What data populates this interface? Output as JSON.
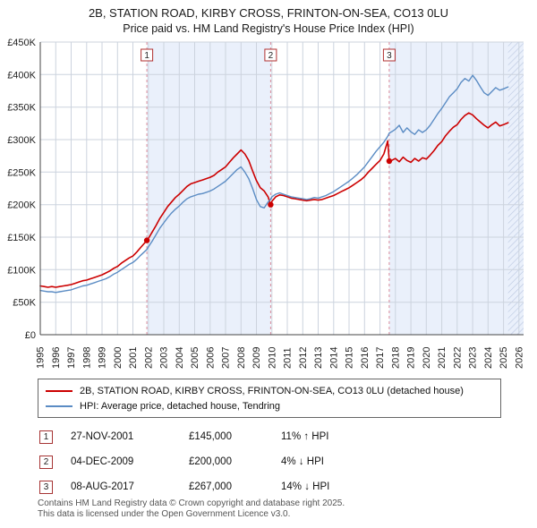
{
  "title": {
    "line1": "2B, STATION ROAD, KIRBY CROSS, FRINTON-ON-SEA, CO13 0LU",
    "line2": "Price paid vs. HM Land Registry's House Price Index (HPI)"
  },
  "chart_data": {
    "type": "line",
    "title": "2B, STATION ROAD, KIRBY CROSS, FRINTON-ON-SEA, CO13 0LU — Price paid vs. HM Land Registry's House Price Index (HPI)",
    "xlim": [
      1995,
      2026.3
    ],
    "ylim": [
      0,
      450000
    ],
    "y_unit": "GBP",
    "values_unit": "GBP_thousands",
    "y_ticks": [
      {
        "k": 0,
        "label": "£0"
      },
      {
        "k": 50,
        "label": "£50K"
      },
      {
        "k": 100,
        "label": "£100K"
      },
      {
        "k": 150,
        "label": "£150K"
      },
      {
        "k": 200,
        "label": "£200K"
      },
      {
        "k": 250,
        "label": "£250K"
      },
      {
        "k": 300,
        "label": "£300K"
      },
      {
        "k": 350,
        "label": "£350K"
      },
      {
        "k": 400,
        "label": "£400K"
      },
      {
        "k": 450,
        "label": "£450K"
      }
    ],
    "x_ticks": [
      1995,
      1996,
      1997,
      1998,
      1999,
      2000,
      2001,
      2002,
      2003,
      2004,
      2005,
      2006,
      2007,
      2008,
      2009,
      2010,
      2011,
      2012,
      2013,
      2014,
      2015,
      2016,
      2017,
      2018,
      2019,
      2020,
      2021,
      2022,
      2023,
      2024,
      2025,
      2026
    ],
    "grid": true,
    "legend_position": "below",
    "colors": {
      "band": "#eaf0fb",
      "grid": "#ccd3de",
      "event_line": "#d98a9a",
      "event_box_border": "#b03030",
      "axis": "#444444",
      "hatch": "#b9c6e0",
      "marker": "#cc0000"
    },
    "bands": [
      [
        2001.906,
        2009.92
      ],
      [
        2017.6,
        2026.3
      ]
    ],
    "hatch": [
      2025.3,
      2026.3
    ],
    "events": [
      {
        "num": "1",
        "x": 2001.906,
        "price_k": 145
      },
      {
        "num": "2",
        "x": 2009.92,
        "price_k": 200
      },
      {
        "num": "3",
        "x": 2017.6,
        "price_k": 267
      }
    ],
    "series": [
      {
        "name": "2B, STATION ROAD, KIRBY CROSS, FRINTON-ON-SEA, CO13 0LU (detached house)",
        "color": "#cc0000",
        "width": 1.6,
        "points": [
          [
            1995.0,
            75
          ],
          [
            1995.25,
            74
          ],
          [
            1995.5,
            73
          ],
          [
            1995.75,
            74
          ],
          [
            1996.0,
            73
          ],
          [
            1996.25,
            74
          ],
          [
            1996.5,
            75
          ],
          [
            1996.75,
            76
          ],
          [
            1997.0,
            77
          ],
          [
            1997.25,
            79
          ],
          [
            1997.5,
            81
          ],
          [
            1997.75,
            83
          ],
          [
            1998.0,
            84
          ],
          [
            1998.25,
            86
          ],
          [
            1998.5,
            88
          ],
          [
            1998.75,
            90
          ],
          [
            1999.0,
            92
          ],
          [
            1999.25,
            95
          ],
          [
            1999.5,
            98
          ],
          [
            1999.75,
            102
          ],
          [
            2000.0,
            105
          ],
          [
            2000.25,
            110
          ],
          [
            2000.5,
            114
          ],
          [
            2000.75,
            118
          ],
          [
            2001.0,
            121
          ],
          [
            2001.25,
            127
          ],
          [
            2001.5,
            134
          ],
          [
            2001.906,
            145
          ],
          [
            2002.0,
            148
          ],
          [
            2002.25,
            158
          ],
          [
            2002.5,
            168
          ],
          [
            2002.75,
            179
          ],
          [
            2003.0,
            188
          ],
          [
            2003.25,
            197
          ],
          [
            2003.5,
            204
          ],
          [
            2003.75,
            211
          ],
          [
            2004.0,
            216
          ],
          [
            2004.25,
            222
          ],
          [
            2004.5,
            228
          ],
          [
            2004.75,
            232
          ],
          [
            2005.0,
            234
          ],
          [
            2005.25,
            236
          ],
          [
            2005.5,
            238
          ],
          [
            2005.75,
            240
          ],
          [
            2006.0,
            242
          ],
          [
            2006.25,
            245
          ],
          [
            2006.5,
            250
          ],
          [
            2006.75,
            254
          ],
          [
            2007.0,
            258
          ],
          [
            2007.25,
            265
          ],
          [
            2007.5,
            272
          ],
          [
            2007.75,
            278
          ],
          [
            2008.0,
            284
          ],
          [
            2008.25,
            278
          ],
          [
            2008.5,
            268
          ],
          [
            2008.75,
            252
          ],
          [
            2009.0,
            237
          ],
          [
            2009.25,
            226
          ],
          [
            2009.5,
            221
          ],
          [
            2009.75,
            212
          ],
          [
            2009.92,
            200
          ],
          [
            2010.0,
            205
          ],
          [
            2010.25,
            212
          ],
          [
            2010.5,
            215
          ],
          [
            2010.75,
            214
          ],
          [
            2011.0,
            212
          ],
          [
            2011.25,
            210
          ],
          [
            2011.5,
            209
          ],
          [
            2011.75,
            208
          ],
          [
            2012.0,
            207
          ],
          [
            2012.25,
            206
          ],
          [
            2012.5,
            207
          ],
          [
            2012.75,
            208
          ],
          [
            2013.0,
            207
          ],
          [
            2013.25,
            208
          ],
          [
            2013.5,
            210
          ],
          [
            2013.75,
            212
          ],
          [
            2014.0,
            214
          ],
          [
            2014.25,
            217
          ],
          [
            2014.5,
            220
          ],
          [
            2014.75,
            223
          ],
          [
            2015.0,
            226
          ],
          [
            2015.25,
            230
          ],
          [
            2015.5,
            234
          ],
          [
            2015.75,
            238
          ],
          [
            2016.0,
            243
          ],
          [
            2016.25,
            250
          ],
          [
            2016.5,
            256
          ],
          [
            2016.75,
            262
          ],
          [
            2017.0,
            268
          ],
          [
            2017.25,
            278
          ],
          [
            2017.5,
            298
          ],
          [
            2017.6,
            267
          ],
          [
            2017.75,
            268
          ],
          [
            2018.0,
            271
          ],
          [
            2018.25,
            266
          ],
          [
            2018.5,
            273
          ],
          [
            2018.75,
            268
          ],
          [
            2019.0,
            265
          ],
          [
            2019.25,
            271
          ],
          [
            2019.5,
            267
          ],
          [
            2019.75,
            272
          ],
          [
            2020.0,
            270
          ],
          [
            2020.25,
            276
          ],
          [
            2020.5,
            283
          ],
          [
            2020.75,
            291
          ],
          [
            2021.0,
            297
          ],
          [
            2021.25,
            306
          ],
          [
            2021.5,
            313
          ],
          [
            2021.75,
            319
          ],
          [
            2022.0,
            323
          ],
          [
            2022.25,
            331
          ],
          [
            2022.5,
            337
          ],
          [
            2022.75,
            341
          ],
          [
            2023.0,
            338
          ],
          [
            2023.25,
            332
          ],
          [
            2023.5,
            327
          ],
          [
            2023.75,
            322
          ],
          [
            2024.0,
            318
          ],
          [
            2024.25,
            323
          ],
          [
            2024.5,
            327
          ],
          [
            2024.75,
            321
          ],
          [
            2025.0,
            323
          ],
          [
            2025.3,
            326
          ]
        ]
      },
      {
        "name": "HPI: Average price, detached house, Tendring",
        "color": "#5b8cc4",
        "width": 1.4,
        "points": [
          [
            1995.0,
            68
          ],
          [
            1995.25,
            67
          ],
          [
            1995.5,
            66
          ],
          [
            1995.75,
            66
          ],
          [
            1996.0,
            65
          ],
          [
            1996.25,
            66
          ],
          [
            1996.5,
            67
          ],
          [
            1996.75,
            68
          ],
          [
            1997.0,
            69
          ],
          [
            1997.25,
            71
          ],
          [
            1997.5,
            73
          ],
          [
            1997.75,
            75
          ],
          [
            1998.0,
            76
          ],
          [
            1998.25,
            78
          ],
          [
            1998.5,
            80
          ],
          [
            1998.75,
            82
          ],
          [
            1999.0,
            84
          ],
          [
            1999.25,
            86
          ],
          [
            1999.5,
            89
          ],
          [
            1999.75,
            93
          ],
          [
            2000.0,
            96
          ],
          [
            2000.25,
            100
          ],
          [
            2000.5,
            104
          ],
          [
            2000.75,
            108
          ],
          [
            2001.0,
            111
          ],
          [
            2001.25,
            116
          ],
          [
            2001.5,
            122
          ],
          [
            2001.906,
            131
          ],
          [
            2002.0,
            135
          ],
          [
            2002.25,
            144
          ],
          [
            2002.5,
            154
          ],
          [
            2002.75,
            164
          ],
          [
            2003.0,
            172
          ],
          [
            2003.25,
            180
          ],
          [
            2003.5,
            187
          ],
          [
            2003.75,
            193
          ],
          [
            2004.0,
            198
          ],
          [
            2004.25,
            204
          ],
          [
            2004.5,
            209
          ],
          [
            2004.75,
            212
          ],
          [
            2005.0,
            214
          ],
          [
            2005.25,
            216
          ],
          [
            2005.5,
            217
          ],
          [
            2005.75,
            219
          ],
          [
            2006.0,
            221
          ],
          [
            2006.25,
            224
          ],
          [
            2006.5,
            228
          ],
          [
            2006.75,
            232
          ],
          [
            2007.0,
            236
          ],
          [
            2007.25,
            242
          ],
          [
            2007.5,
            248
          ],
          [
            2007.75,
            254
          ],
          [
            2008.0,
            258
          ],
          [
            2008.25,
            250
          ],
          [
            2008.5,
            240
          ],
          [
            2008.75,
            225
          ],
          [
            2009.0,
            208
          ],
          [
            2009.25,
            197
          ],
          [
            2009.5,
            195
          ],
          [
            2009.75,
            204
          ],
          [
            2009.92,
            208
          ],
          [
            2010.0,
            212
          ],
          [
            2010.25,
            216
          ],
          [
            2010.5,
            218
          ],
          [
            2010.75,
            216
          ],
          [
            2011.0,
            214
          ],
          [
            2011.25,
            212
          ],
          [
            2011.5,
            211
          ],
          [
            2011.75,
            210
          ],
          [
            2012.0,
            209
          ],
          [
            2012.25,
            208
          ],
          [
            2012.5,
            209
          ],
          [
            2012.75,
            211
          ],
          [
            2013.0,
            210
          ],
          [
            2013.25,
            212
          ],
          [
            2013.5,
            214
          ],
          [
            2013.75,
            217
          ],
          [
            2014.0,
            220
          ],
          [
            2014.25,
            224
          ],
          [
            2014.5,
            228
          ],
          [
            2014.75,
            232
          ],
          [
            2015.0,
            236
          ],
          [
            2015.25,
            241
          ],
          [
            2015.5,
            246
          ],
          [
            2015.75,
            252
          ],
          [
            2016.0,
            258
          ],
          [
            2016.25,
            266
          ],
          [
            2016.5,
            274
          ],
          [
            2016.75,
            282
          ],
          [
            2017.0,
            289
          ],
          [
            2017.25,
            296
          ],
          [
            2017.5,
            305
          ],
          [
            2017.6,
            310
          ],
          [
            2017.75,
            312
          ],
          [
            2018.0,
            316
          ],
          [
            2018.25,
            322
          ],
          [
            2018.5,
            311
          ],
          [
            2018.75,
            318
          ],
          [
            2019.0,
            312
          ],
          [
            2019.25,
            308
          ],
          [
            2019.5,
            315
          ],
          [
            2019.75,
            311
          ],
          [
            2020.0,
            315
          ],
          [
            2020.25,
            322
          ],
          [
            2020.5,
            331
          ],
          [
            2020.75,
            340
          ],
          [
            2021.0,
            348
          ],
          [
            2021.25,
            357
          ],
          [
            2021.5,
            366
          ],
          [
            2021.75,
            372
          ],
          [
            2022.0,
            378
          ],
          [
            2022.25,
            388
          ],
          [
            2022.5,
            394
          ],
          [
            2022.75,
            390
          ],
          [
            2023.0,
            399
          ],
          [
            2023.25,
            391
          ],
          [
            2023.5,
            381
          ],
          [
            2023.75,
            372
          ],
          [
            2024.0,
            368
          ],
          [
            2024.25,
            374
          ],
          [
            2024.5,
            380
          ],
          [
            2024.75,
            376
          ],
          [
            2025.0,
            378
          ],
          [
            2025.3,
            381
          ]
        ]
      }
    ]
  },
  "legend": {
    "items": [
      {
        "label": "2B, STATION ROAD, KIRBY CROSS, FRINTON-ON-SEA, CO13 0LU (detached house)"
      },
      {
        "label": "HPI: Average price, detached house, Tendring"
      }
    ]
  },
  "transactions": [
    {
      "num": "1",
      "date": "27-NOV-2001",
      "price": "£145,000",
      "hpi_delta": "11% ↑ HPI"
    },
    {
      "num": "2",
      "date": "04-DEC-2009",
      "price": "£200,000",
      "hpi_delta": "4% ↓ HPI"
    },
    {
      "num": "3",
      "date": "08-AUG-2017",
      "price": "£267,000",
      "hpi_delta": "14% ↓ HPI"
    }
  ],
  "footer": {
    "line1": "Contains HM Land Registry data © Crown copyright and database right 2025.",
    "line2": "This data is licensed under the Open Government Licence v3.0."
  }
}
